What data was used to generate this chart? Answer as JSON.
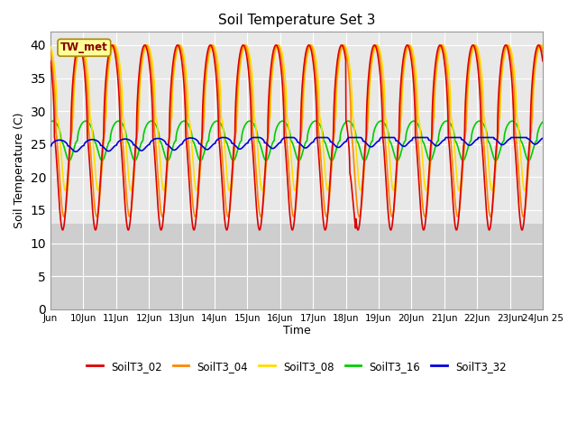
{
  "title": "Soil Temperature Set 3",
  "xlabel": "Time",
  "ylabel": "Soil Temperature (C)",
  "xlim": [
    0,
    15
  ],
  "ylim": [
    0,
    42
  ],
  "yticks": [
    0,
    5,
    10,
    15,
    20,
    25,
    30,
    35,
    40
  ],
  "xtick_labels": [
    "Jun",
    "10Jun",
    "11Jun",
    "12Jun",
    "13Jun",
    "14Jun",
    "15Jun",
    "16Jun",
    "17Jun",
    "18Jun",
    "19Jun",
    "20Jun",
    "21Jun",
    "22Jun",
    "23Jun",
    "24Jun 25"
  ],
  "fig_bg_color": "#ffffff",
  "plot_bg_color": "#e8e8e8",
  "annotation_text": "TW_met",
  "annotation_color": "#880000",
  "annotation_bg": "#ffff99",
  "annotation_edge": "#aa8800",
  "grid_color": "#ffffff",
  "series": {
    "SoilT3_02": {
      "color": "#dd0000",
      "linewidth": 1.2
    },
    "SoilT3_04": {
      "color": "#ff8800",
      "linewidth": 1.2
    },
    "SoilT3_08": {
      "color": "#ffdd00",
      "linewidth": 1.2
    },
    "SoilT3_16": {
      "color": "#00cc00",
      "linewidth": 1.2
    },
    "SoilT3_32": {
      "color": "#0000dd",
      "linewidth": 1.2
    }
  }
}
